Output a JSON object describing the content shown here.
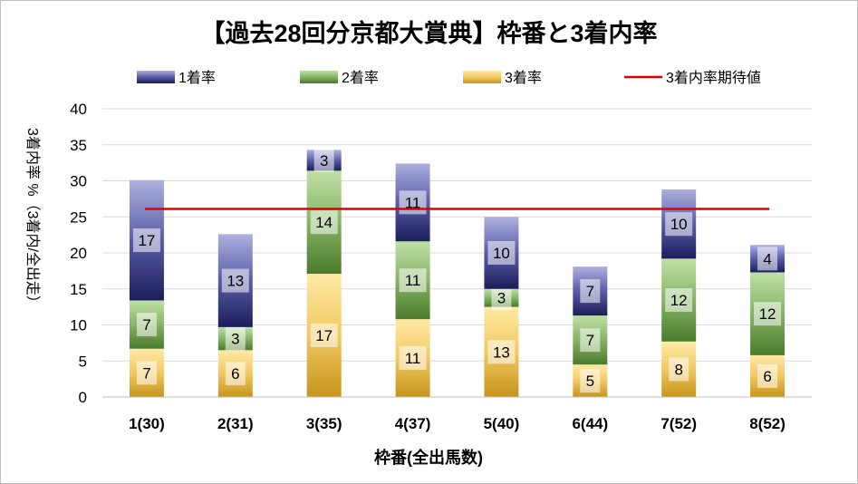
{
  "chart_data": {
    "type": "bar",
    "stacked": true,
    "title": "【過去28回分京都大賞典】枠番と3着内率",
    "xlabel": "枠番(全出馬数)",
    "ylabel": "3着内率 %（3着内/全出走）",
    "ylim": [
      0,
      40
    ],
    "yticks": [
      0,
      5,
      10,
      15,
      20,
      25,
      30,
      35,
      40
    ],
    "grid": true,
    "legend_position": "top",
    "categories": [
      "1(30)",
      "2(31)",
      "3(35)",
      "4(37)",
      "5(40)",
      "6(44)",
      "7(52)",
      "8(52)"
    ],
    "series": [
      {
        "name": "3着率",
        "values": [
          6.7,
          6.5,
          17.1,
          10.8,
          12.5,
          4.5,
          7.7,
          5.8
        ],
        "labels": [
          "7",
          "6",
          "17",
          "11",
          "13",
          "5",
          "8",
          "6"
        ],
        "color": "#d9a928"
      },
      {
        "name": "2着率",
        "values": [
          6.7,
          3.2,
          14.3,
          10.8,
          2.5,
          6.8,
          11.5,
          11.5
        ],
        "labels": [
          "7",
          "3",
          "14",
          "11",
          "3",
          "7",
          "12",
          "12"
        ],
        "color": "#6a9a48"
      },
      {
        "name": "1着率",
        "values": [
          16.7,
          12.9,
          2.9,
          10.8,
          10.0,
          6.8,
          9.6,
          3.8
        ],
        "labels": [
          "17",
          "13",
          "3",
          "11",
          "10",
          "7",
          "10",
          "4"
        ],
        "color": "#3a3c8a"
      }
    ],
    "expected_line": {
      "name": "3着内率期待値",
      "value": 26.1,
      "color": "#e00000"
    }
  }
}
